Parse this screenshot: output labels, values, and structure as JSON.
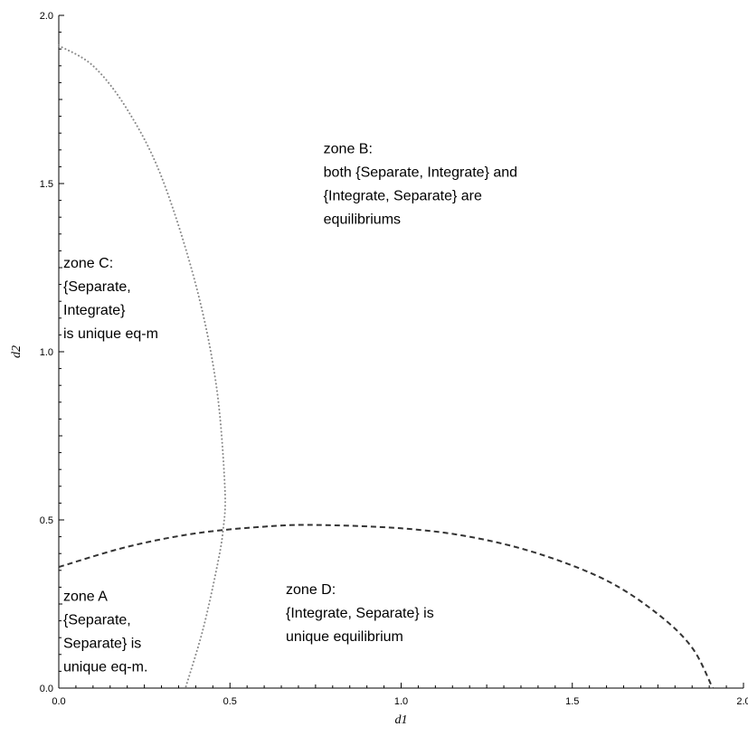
{
  "chart_data": {
    "type": "line",
    "title": "",
    "xlabel": "d1",
    "ylabel": "d2",
    "xlim": [
      0,
      2
    ],
    "ylim": [
      0,
      2
    ],
    "grid": false,
    "x_ticks": [
      "0.0",
      "0.5",
      "1.0",
      "1.5",
      "2.0"
    ],
    "y_ticks": [
      "0.0",
      "0.5",
      "1.0",
      "1.5",
      "2.0"
    ],
    "series": [
      {
        "style": "dotted",
        "color": "#888888",
        "points": [
          [
            0.0,
            1.91
          ],
          [
            0.1,
            1.85
          ],
          [
            0.2,
            1.72
          ],
          [
            0.3,
            1.52
          ],
          [
            0.4,
            1.2
          ],
          [
            0.46,
            0.9
          ],
          [
            0.485,
            0.6
          ],
          [
            0.48,
            0.47
          ],
          [
            0.46,
            0.35
          ],
          [
            0.42,
            0.17
          ],
          [
            0.37,
            0.0
          ]
        ]
      },
      {
        "style": "dashed",
        "color": "#333333",
        "points": [
          [
            0.0,
            0.36
          ],
          [
            0.2,
            0.42
          ],
          [
            0.4,
            0.46
          ],
          [
            0.6,
            0.48
          ],
          [
            0.75,
            0.485
          ],
          [
            1.0,
            0.475
          ],
          [
            1.2,
            0.45
          ],
          [
            1.4,
            0.4
          ],
          [
            1.6,
            0.32
          ],
          [
            1.75,
            0.22
          ],
          [
            1.85,
            0.12
          ],
          [
            1.91,
            0.0
          ]
        ]
      }
    ],
    "annotations": [
      {
        "x": 0.76,
        "y": 1.59,
        "lines": [
          "zone B:",
          "both {Separate, Integrate} and",
          "{Integrate, Separate} are",
          "equilibriums"
        ]
      },
      {
        "x": 0.0,
        "y": 1.25,
        "lines": [
          "zone C:",
          "{Separate,",
          "Integrate}",
          "is unique eq-m"
        ]
      },
      {
        "x": 0.0,
        "y": 0.26,
        "lines": [
          "zone A",
          "{Separate,",
          "Separate} is",
          "unique eq-m."
        ]
      },
      {
        "x": 0.65,
        "y": 0.28,
        "lines": [
          "zone D:",
          "{Integrate, Separate} is",
          "unique equilibrium"
        ]
      }
    ]
  }
}
